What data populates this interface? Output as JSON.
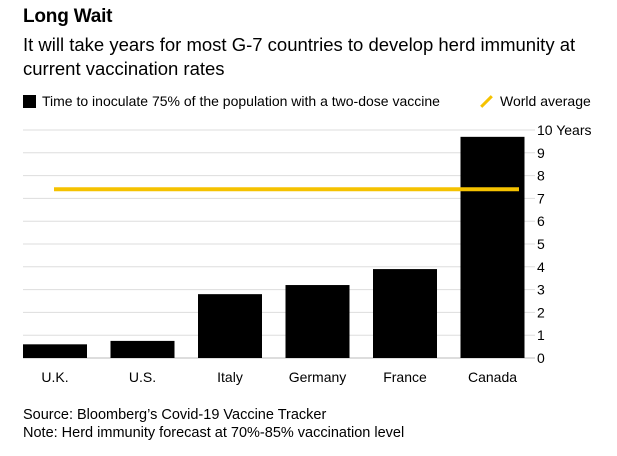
{
  "header": {
    "title": "Long Wait",
    "subtitle": "It will take years for most G-7 countries to develop herd immunity at current vaccination rates"
  },
  "legend": {
    "bar_label": "Time to inoculate 75% of the population with a two-dose vaccine",
    "line_label": "World average"
  },
  "footer": {
    "source": "Source: Bloomberg’s Covid-19 Vaccine Tracker",
    "note": "Note: Herd immunity forecast at 70%-85% vaccination level"
  },
  "colors": {
    "bar": "#000000",
    "line": "#f5c200",
    "grid": "#dddddd"
  },
  "chart_data": {
    "type": "bar",
    "title": "Long Wait",
    "subtitle": "It will take years for most G-7 countries to develop herd immunity at current vaccination rates",
    "categories": [
      "U.K.",
      "U.S.",
      "Italy",
      "Germany",
      "France",
      "Canada"
    ],
    "series": [
      {
        "name": "Time to inoculate 75% of the population with a two-dose vaccine",
        "type": "bar",
        "values": [
          0.6,
          0.75,
          2.8,
          3.2,
          3.9,
          9.7
        ]
      }
    ],
    "reference_line": {
      "name": "World average",
      "value": 7.4
    },
    "y_axis": {
      "min": 0,
      "max": 10,
      "ticks": [
        "0",
        "1",
        "2",
        "3",
        "4",
        "5",
        "6",
        "7",
        "8",
        "9",
        "10 Years"
      ],
      "position": "right"
    },
    "grid": true,
    "legend_position": "top"
  }
}
